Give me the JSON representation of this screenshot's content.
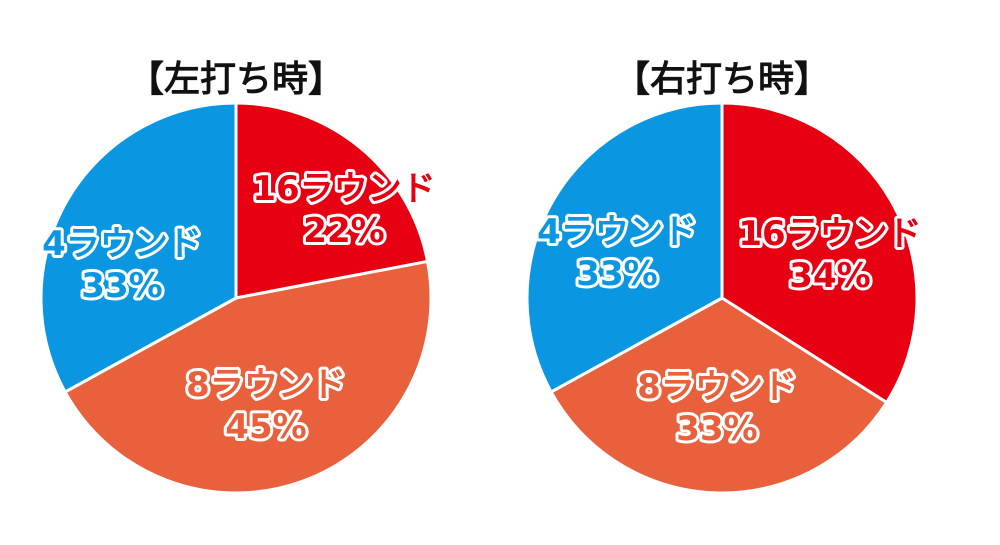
{
  "chart_data": [
    {
      "type": "pie",
      "title": "【左打ち時】",
      "slices": [
        {
          "label": "16ラウンド",
          "value": 22,
          "value_label": "22%",
          "color": "#e60012"
        },
        {
          "label": "8ラウンド",
          "value": 45,
          "value_label": "45%",
          "color": "#e8603c"
        },
        {
          "label": "4ラウンド",
          "value": 33,
          "value_label": "33%",
          "color": "#0a96e0"
        }
      ]
    },
    {
      "type": "pie",
      "title": "【右打ち時】",
      "slices": [
        {
          "label": "16ラウンド",
          "value": 34,
          "value_label": "34%",
          "color": "#e60012"
        },
        {
          "label": "8ラウンド",
          "value": 33,
          "value_label": "33%",
          "color": "#e8603c"
        },
        {
          "label": "4ラウンド",
          "value": 33,
          "value_label": "33%",
          "color": "#0a96e0"
        }
      ]
    }
  ]
}
